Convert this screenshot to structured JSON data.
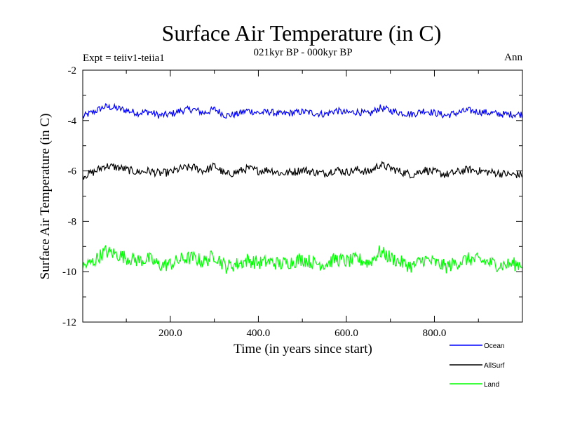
{
  "chart_data": {
    "type": "line",
    "title": "Surface Air Temperature (in C)",
    "subtitle": "021kyr BP - 000kyr BP",
    "left_label": "Expt = teiiv1-teiia1",
    "right_label": "Ann",
    "xlabel": "Time (in years since start)",
    "ylabel": "Surface Air Temperature (in C)",
    "xlim": [
      1,
      1000
    ],
    "ylim": [
      -12,
      -2
    ],
    "x_ticks": [
      200,
      400,
      600,
      800
    ],
    "x_tick_labels": [
      "200.0",
      "400.0",
      "600.0",
      "800.0"
    ],
    "y_ticks": [
      -12,
      -10,
      -8,
      -6,
      -4,
      -2
    ],
    "y_tick_labels": [
      "-12",
      "-10",
      "-8",
      "-6",
      "-4",
      "-2"
    ],
    "grid": false,
    "legend_position": "bottom-right",
    "series": [
      {
        "name": "Ocean",
        "color": "#0000ff",
        "sample_step": 25,
        "values": [
          -3.85,
          -3.65,
          -3.45,
          -3.5,
          -3.6,
          -3.7,
          -3.65,
          -3.8,
          -3.75,
          -3.6,
          -3.55,
          -3.7,
          -3.55,
          -3.8,
          -3.75,
          -3.6,
          -3.7,
          -3.65,
          -3.75,
          -3.7,
          -3.65,
          -3.7,
          -3.75,
          -3.6,
          -3.7,
          -3.65,
          -3.75,
          -3.5,
          -3.6,
          -3.7,
          -3.75,
          -3.6,
          -3.7,
          -3.8,
          -3.7,
          -3.6,
          -3.65,
          -3.7,
          -3.75,
          -3.75
        ]
      },
      {
        "name": "AllSurf",
        "color": "#000000",
        "sample_step": 25,
        "values": [
          -6.2,
          -6.05,
          -5.8,
          -5.85,
          -5.95,
          -6.05,
          -6.0,
          -6.1,
          -6.05,
          -5.9,
          -5.85,
          -6.0,
          -5.8,
          -6.15,
          -6.05,
          -5.9,
          -6.0,
          -5.95,
          -6.1,
          -6.05,
          -5.95,
          -6.05,
          -6.1,
          -5.95,
          -6.05,
          -5.95,
          -6.05,
          -5.75,
          -5.9,
          -6.05,
          -6.15,
          -5.95,
          -6.05,
          -6.15,
          -6.05,
          -5.95,
          -6.0,
          -6.05,
          -6.1,
          -6.15
        ]
      },
      {
        "name": "Land",
        "color": "#00ff00",
        "sample_step": 25,
        "values": [
          -9.8,
          -9.6,
          -9.2,
          -9.3,
          -9.45,
          -9.55,
          -9.5,
          -9.75,
          -9.7,
          -9.5,
          -9.45,
          -9.6,
          -9.35,
          -9.8,
          -9.7,
          -9.55,
          -9.65,
          -9.6,
          -9.7,
          -9.6,
          -9.5,
          -9.65,
          -9.7,
          -9.5,
          -9.6,
          -9.5,
          -9.65,
          -9.2,
          -9.45,
          -9.65,
          -9.8,
          -9.5,
          -9.65,
          -9.8,
          -9.65,
          -9.5,
          -9.55,
          -9.65,
          -9.75,
          -9.7
        ]
      }
    ]
  }
}
